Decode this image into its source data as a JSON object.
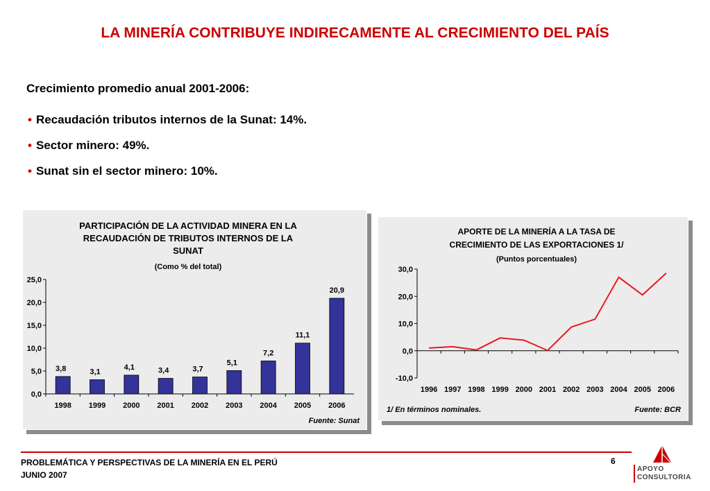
{
  "slide": {
    "title": "LA MINERÍA CONTRIBUYE INDIRECAMENTE AL CRECIMIENTO DEL PAÍS",
    "subtitle": "Crecimiento promedio anual 2001-2006:",
    "bullets": [
      "Recaudación tributos internos de la Sunat: 14%.",
      "Sector minero: 49%.",
      "Sunat sin el sector minero: 10%."
    ],
    "bullet_symbol": "•"
  },
  "footer": {
    "line1": "PROBLEMÁTICA Y PERSPECTIVAS DE LA MINERÍA EN EL PERÚ",
    "line2": "JUNIO 2007",
    "page_number": "6",
    "logo_line1": "APOYO",
    "logo_line2": "CONSULTORIA",
    "accent_color": "#cc0000"
  },
  "chart_data": [
    {
      "type": "bar",
      "title_lines": [
        "PARTICIPACIÓN DE LA ACTIVIDAD MINERA EN LA",
        "RECAUDACIÓN DE TRIBUTOS INTERNOS DE LA",
        "SUNAT"
      ],
      "subtitle": "(Como % del total)",
      "categories": [
        "1998",
        "1999",
        "2000",
        "2001",
        "2002",
        "2003",
        "2004",
        "2005",
        "2006"
      ],
      "values": [
        3.8,
        3.1,
        4.1,
        3.4,
        3.7,
        5.1,
        7.2,
        11.1,
        20.9
      ],
      "data_labels": [
        "3,8",
        "3,1",
        "4,1",
        "3,4",
        "3,7",
        "5,1",
        "7,2",
        "11,1",
        "20,9"
      ],
      "yticks": [
        "0,0",
        "5,0",
        "10,0",
        "15,0",
        "20,0",
        "25,0"
      ],
      "ylim": [
        0,
        25
      ],
      "bar_color": "#333399",
      "source": "Fuente: Sunat",
      "grid": false
    },
    {
      "type": "line",
      "title_lines": [
        "APORTE DE LA MINERÍA A LA TASA DE",
        "CRECIMIENTO DE LAS EXPORTACIONES 1/"
      ],
      "subtitle": "(Puntos porcentuales)",
      "categories": [
        "1996",
        "1997",
        "1998",
        "1999",
        "2000",
        "2001",
        "2002",
        "2003",
        "2004",
        "2005",
        "2006"
      ],
      "values": [
        1.0,
        1.5,
        0.3,
        4.7,
        3.9,
        0.1,
        8.7,
        11.6,
        27.0,
        20.5,
        28.5
      ],
      "yticks": [
        "-10,0",
        "0,0",
        "10,0",
        "20,0",
        "30,0"
      ],
      "ylim": [
        -10,
        30
      ],
      "line_color": "#e8191f",
      "note": "1/ En términos nominales.",
      "source": "Fuente: BCR",
      "grid": false
    }
  ]
}
